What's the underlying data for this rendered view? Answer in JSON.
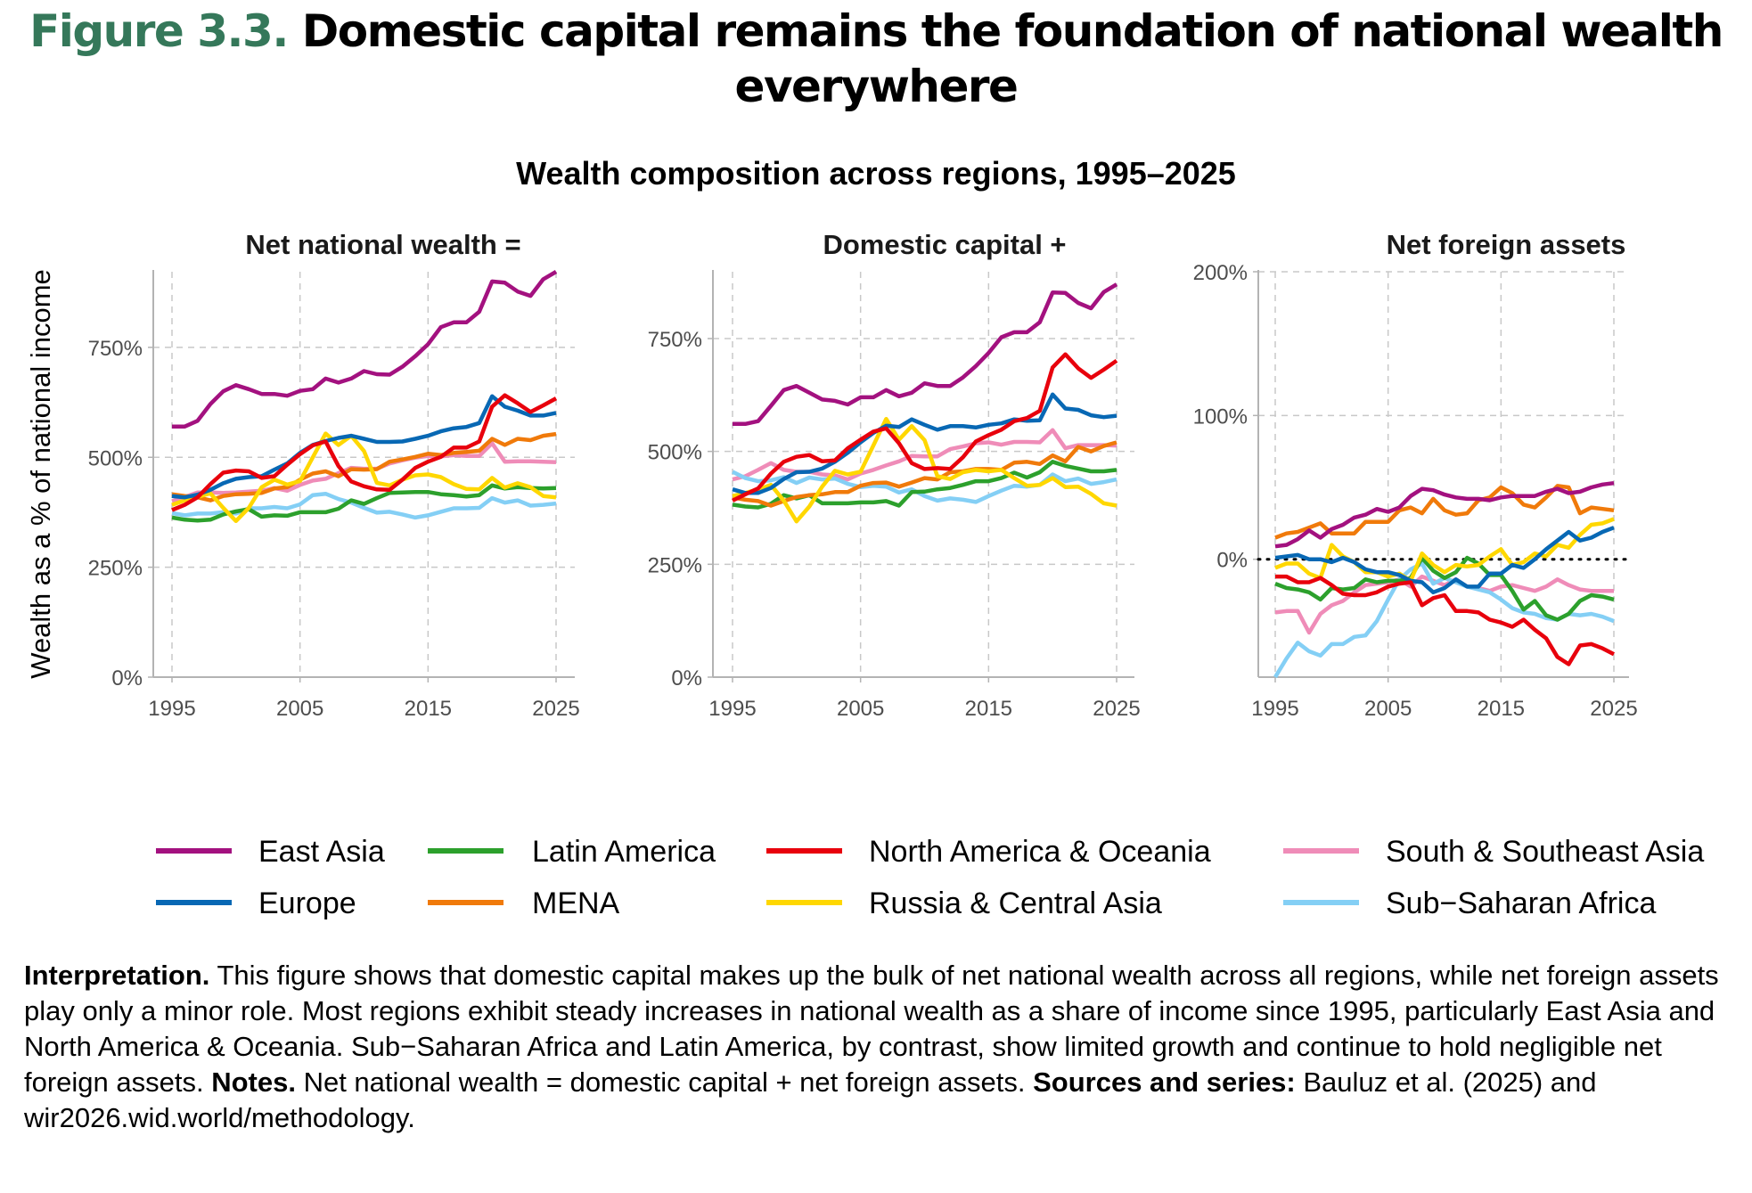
{
  "figure": {
    "label": "Figure 3.3.",
    "title": "Domestic capital remains the foundation of national wealth everywhere",
    "subtitle": "Wealth composition across regions, 1995–2025",
    "ylabel": "Wealth as a % of national income",
    "label_color": "#35785a"
  },
  "legend": [
    {
      "name": "East Asia",
      "color": "#a3117f"
    },
    {
      "name": "Europe",
      "color": "#0868b4"
    },
    {
      "name": "Latin America",
      "color": "#2ca02c"
    },
    {
      "name": "MENA",
      "color": "#f07a0a"
    },
    {
      "name": "North America & Oceania",
      "color": "#e8000c"
    },
    {
      "name": "Russia & Central Asia",
      "color": "#ffd700"
    },
    {
      "name": "South & Southeast Asia",
      "color": "#ef8cb8"
    },
    {
      "name": "Sub−Saharan Africa",
      "color": "#84cff5"
    }
  ],
  "footer": [
    {
      "text": "Interpretation.",
      "bold": true
    },
    {
      "text": " This figure shows that domestic capital makes up the bulk of net national wealth across all regions, while net foreign assets play only a minor role. Most regions exhibit steady increases in national wealth as a share of income since 1995, particularly East Asia and North America & Oceania. Sub−Saharan Africa and Latin America, by contrast, show limited growth and continue to hold negligible net foreign assets. ",
      "bold": false
    },
    {
      "text": "Notes.",
      "bold": true
    },
    {
      "text": " Net national wealth = domestic capital + net foreign assets. ",
      "bold": false
    },
    {
      "text": "Sources and series:",
      "bold": true
    },
    {
      "text": " Bauluz et al. (2025) and wir2026.wid.world/methodology.",
      "bold": false
    }
  ],
  "chart_data": [
    {
      "type": "line",
      "title": "Net national wealth =",
      "x_ticks": [
        "1995",
        "2005",
        "2015",
        "2025"
      ],
      "y_ticks": [
        "0%",
        "250%",
        "500%",
        "750%"
      ],
      "y_tick_values": [
        0,
        250,
        500,
        750
      ],
      "xlim": [
        1995,
        2025
      ],
      "ylim": [
        0,
        922
      ],
      "grid": true,
      "x_start": 1995,
      "series": [
        {
          "name": "East Asia",
          "values": [
            570,
            570,
            583,
            621,
            650,
            664,
            655,
            644,
            644,
            640,
            651,
            655,
            679,
            670,
            679,
            696,
            689,
            688,
            706,
            730,
            757,
            796,
            807,
            807,
            831,
            900,
            897,
            877,
            867,
            905,
            922
          ]
        },
        {
          "name": "Europe",
          "values": [
            412,
            409,
            415,
            426,
            441,
            451,
            455,
            457,
            472,
            486,
            510,
            528,
            537,
            544,
            549,
            542,
            535,
            535,
            536,
            542,
            549,
            559,
            566,
            569,
            578,
            639,
            615,
            606,
            595,
            595,
            601
          ]
        },
        {
          "name": "Latin America",
          "values": [
            363,
            358,
            356,
            358,
            370,
            377,
            382,
            365,
            368,
            367,
            375,
            375,
            375,
            383,
            402,
            394,
            407,
            419,
            420,
            421,
            421,
            416,
            414,
            411,
            414,
            436,
            429,
            432,
            430,
            429,
            430
          ]
        },
        {
          "name": "MENA",
          "values": [
            416,
            412,
            409,
            402,
            412,
            416,
            417,
            419,
            429,
            432,
            449,
            463,
            468,
            457,
            473,
            472,
            473,
            490,
            495,
            501,
            508,
            505,
            510,
            512,
            515,
            542,
            528,
            542,
            539,
            549,
            553
          ]
        },
        {
          "name": "North America & Oceania",
          "values": [
            380,
            392,
            409,
            439,
            465,
            470,
            468,
            453,
            457,
            483,
            507,
            527,
            536,
            480,
            445,
            434,
            427,
            426,
            449,
            476,
            490,
            501,
            522,
            522,
            536,
            615,
            641,
            623,
            603,
            618,
            634
          ]
        },
        {
          "name": "Russia & Central Asia",
          "values": [
            392,
            402,
            410,
            418,
            385,
            355,
            385,
            432,
            449,
            438,
            446,
            500,
            554,
            528,
            549,
            514,
            442,
            436,
            449,
            459,
            461,
            455,
            439,
            428,
            427,
            453,
            431,
            441,
            432,
            412,
            409
          ]
        },
        {
          "name": "South & Southeast Asia",
          "values": [
            400,
            410,
            420,
            420,
            419,
            420,
            422,
            424,
            430,
            424,
            437,
            447,
            451,
            464,
            476,
            474,
            474,
            486,
            493,
            499,
            503,
            502,
            505,
            503,
            503,
            532,
            490,
            491,
            491,
            490,
            489
          ]
        },
        {
          "name": "Sub−Saharan Africa",
          "values": [
            373,
            368,
            372,
            372,
            375,
            372,
            384,
            384,
            387,
            384,
            393,
            414,
            417,
            405,
            397,
            385,
            374,
            376,
            370,
            363,
            368,
            376,
            384,
            384,
            385,
            407,
            397,
            402,
            390,
            392,
            395
          ]
        }
      ]
    },
    {
      "type": "line",
      "title": "Domestic capital +",
      "x_ticks": [
        "1995",
        "2005",
        "2015",
        "2025"
      ],
      "y_ticks": [
        "0%",
        "250%",
        "500%",
        "750%"
      ],
      "y_tick_values": [
        0,
        250,
        500,
        750
      ],
      "xlim": [
        1995,
        2025
      ],
      "ylim": [
        0,
        898
      ],
      "grid": true,
      "x_start": 1995,
      "series": [
        {
          "name": "East Asia",
          "values": [
            561,
            561,
            567,
            601,
            636,
            645,
            630,
            615,
            612,
            604,
            620,
            620,
            636,
            622,
            630,
            651,
            645,
            645,
            664,
            689,
            718,
            753,
            764,
            764,
            786,
            852,
            851,
            829,
            817,
            853,
            870
          ]
        },
        {
          "name": "Europe",
          "values": [
            416,
            408,
            408,
            419,
            439,
            454,
            455,
            462,
            477,
            497,
            520,
            541,
            557,
            554,
            571,
            559,
            548,
            556,
            556,
            553,
            559,
            562,
            571,
            568,
            569,
            626,
            595,
            592,
            580,
            576,
            579
          ]
        },
        {
          "name": "Latin America",
          "values": [
            382,
            378,
            376,
            384,
            403,
            396,
            403,
            385,
            385,
            385,
            387,
            387,
            390,
            380,
            410,
            411,
            416,
            419,
            426,
            434,
            434,
            441,
            453,
            442,
            454,
            477,
            468,
            462,
            456,
            456,
            459
          ]
        },
        {
          "name": "MENA",
          "values": [
            398,
            393,
            390,
            380,
            390,
            399,
            403,
            405,
            410,
            410,
            424,
            430,
            431,
            422,
            431,
            441,
            438,
            454,
            456,
            461,
            461,
            459,
            475,
            477,
            472,
            491,
            478,
            510,
            500,
            512,
            520
          ]
        },
        {
          "name": "North America & Oceania",
          "values": [
            391,
            405,
            418,
            451,
            477,
            488,
            492,
            478,
            480,
            507,
            526,
            544,
            551,
            518,
            474,
            461,
            463,
            461,
            487,
            522,
            536,
            548,
            567,
            574,
            590,
            686,
            715,
            684,
            663,
            681,
            701
          ]
        },
        {
          "name": "Russia & Central Asia",
          "values": [
            401,
            408,
            416,
            426,
            391,
            345,
            378,
            422,
            457,
            449,
            455,
            513,
            572,
            526,
            556,
            525,
            445,
            439,
            454,
            459,
            456,
            459,
            441,
            424,
            426,
            441,
            421,
            422,
            406,
            385,
            380
          ]
        },
        {
          "name": "South & Southeast Asia",
          "values": [
            438,
            445,
            459,
            474,
            459,
            455,
            455,
            449,
            447,
            438,
            451,
            459,
            469,
            478,
            490,
            489,
            489,
            505,
            511,
            518,
            520,
            515,
            521,
            521,
            520,
            547,
            507,
            514,
            514,
            514,
            513
          ]
        },
        {
          "name": "Sub−Saharan Africa",
          "values": [
            455,
            441,
            434,
            436,
            443,
            430,
            442,
            438,
            440,
            428,
            421,
            424,
            422,
            409,
            416,
            401,
            391,
            396,
            393,
            388,
            401,
            413,
            424,
            422,
            426,
            449,
            434,
            440,
            428,
            432,
            438
          ]
        }
      ]
    },
    {
      "type": "line",
      "title": "Net foreign assets",
      "x_ticks": [
        "1995",
        "2005",
        "2015",
        "2025"
      ],
      "y_ticks": [
        "0%",
        "100%",
        "200%"
      ],
      "y_tick_values": [
        0,
        100,
        200
      ],
      "xlim": [
        1995,
        2025
      ],
      "ylim": [
        -82,
        200
      ],
      "grid": true,
      "zero_line": "dotted",
      "x_start": 1995,
      "series": [
        {
          "name": "East Asia",
          "values": [
            9,
            10,
            14,
            20,
            15,
            21,
            24,
            29,
            31,
            35,
            33,
            36,
            44,
            49,
            48,
            45,
            43,
            42,
            42,
            41,
            43,
            44,
            44,
            44,
            47,
            49,
            46,
            47,
            50,
            52,
            53
          ]
        },
        {
          "name": "Europe",
          "values": [
            1,
            2,
            3,
            0,
            0,
            -2,
            1,
            -2,
            -7,
            -9,
            -9,
            -11,
            -15,
            -16,
            -23,
            -20,
            -14,
            -19,
            -19,
            -10,
            -10,
            -4,
            -6,
            0,
            7,
            13,
            19,
            13,
            15,
            19,
            22
          ]
        },
        {
          "name": "Latin America",
          "values": [
            -17,
            -20,
            -21,
            -23,
            -28,
            -20,
            -21,
            -20,
            -14,
            -16,
            -15,
            -15,
            -13,
            1,
            -8,
            -13,
            -9,
            1,
            -3,
            -11,
            -11,
            -22,
            -35,
            -29,
            -39,
            -42,
            -38,
            -29,
            -25,
            -26,
            -28
          ]
        },
        {
          "name": "MENA",
          "values": [
            15,
            18,
            19,
            22,
            25,
            18,
            18,
            18,
            26,
            26,
            26,
            34,
            36,
            32,
            42,
            34,
            31,
            32,
            41,
            43,
            50,
            46,
            38,
            36,
            43,
            51,
            50,
            32,
            36,
            35,
            34
          ]
        },
        {
          "name": "North America & Oceania",
          "values": [
            -12,
            -12,
            -16,
            -16,
            -13,
            -18,
            -24,
            -25,
            -25,
            -23,
            -19,
            -17,
            -16,
            -32,
            -27,
            -25,
            -36,
            -36,
            -37,
            -42,
            -44,
            -47,
            -42,
            -49,
            -55,
            -68,
            -73,
            -60,
            -59,
            -62,
            -66
          ]
        },
        {
          "name": "Russia & Central Asia",
          "values": [
            -6,
            -3,
            -3,
            -10,
            -13,
            10,
            2,
            -2,
            -9,
            -9,
            -12,
            -10,
            -15,
            4,
            -4,
            -9,
            -4,
            -5,
            -4,
            2,
            7,
            -4,
            -2,
            4,
            2,
            10,
            8,
            17,
            24,
            25,
            28
          ]
        },
        {
          "name": "South & Southeast Asia",
          "values": [
            -37,
            -36,
            -36,
            -51,
            -38,
            -32,
            -29,
            -23,
            -18,
            -17,
            -16,
            -14,
            -19,
            -12,
            -15,
            -18,
            -14,
            -19,
            -20,
            -22,
            -19,
            -18,
            -20,
            -22,
            -19,
            -14,
            -18,
            -21,
            -22,
            -22,
            -22
          ]
        },
        {
          "name": "Sub−Saharan Africa",
          "values": [
            -82,
            -69,
            -58,
            -64,
            -67,
            -59,
            -59,
            -54,
            -53,
            -43,
            -28,
            -14,
            -7,
            -3,
            -17,
            -13,
            -16,
            -19,
            -21,
            -23,
            -28,
            -34,
            -37,
            -38,
            -41,
            -42,
            -38,
            -39,
            -38,
            -40,
            -43
          ]
        }
      ]
    }
  ]
}
